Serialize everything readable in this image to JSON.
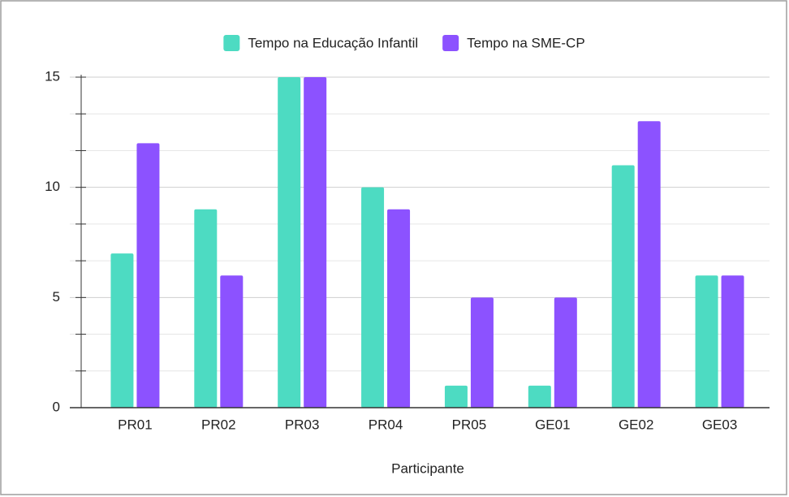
{
  "chart_data": {
    "type": "bar",
    "x_label": "Participante",
    "categories": [
      "PR01",
      "PR02",
      "PR03",
      "PR04",
      "PR05",
      "GE01",
      "GE02",
      "GE03"
    ],
    "series": [
      {
        "name": "Tempo na Educação Infantil",
        "color": "#4ddbc2",
        "values": [
          7,
          9,
          15,
          10,
          1,
          1,
          11,
          6
        ]
      },
      {
        "name": "Tempo na SME-CP",
        "color": "#8c52ff",
        "values": [
          12,
          6,
          15,
          9,
          5,
          5,
          13,
          6
        ]
      }
    ],
    "ylim": [
      0,
      15
    ],
    "yticks": [
      0,
      5,
      10,
      15
    ],
    "grid": true,
    "minor_grid_per_major": 3,
    "legend": "top"
  }
}
